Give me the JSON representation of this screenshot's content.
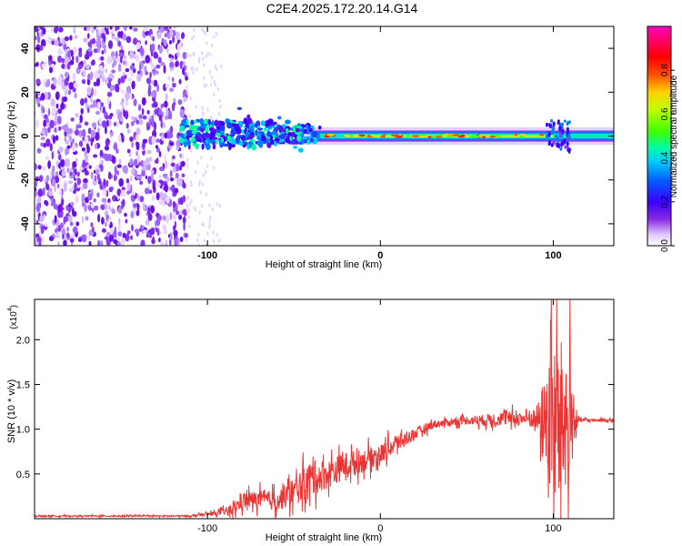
{
  "title": "C2E4.2025.172.20.14.G14",
  "chart_data": [
    {
      "type": "heatmap",
      "name": "spectrogram",
      "xlabel": "Height of straight line (km)",
      "ylabel": "Frequency (Hz)",
      "xlim": [
        -200,
        135
      ],
      "ylim": [
        -50,
        50
      ],
      "x_ticks": [
        -100,
        0,
        100
      ],
      "y_ticks": [
        -40,
        -20,
        0,
        20,
        40
      ],
      "colorbar": {
        "label": "Normalized spectral amplitude",
        "range": [
          0,
          1
        ],
        "ticks": [
          "0.0",
          "0.2",
          "0.4",
          "0.6",
          "0.8"
        ],
        "colors": [
          "#ffffff",
          "#e0c8ff",
          "#8a2be2",
          "#3a00ff",
          "#0060ff",
          "#00c8ff",
          "#00ffa0",
          "#40ff00",
          "#c0ff00",
          "#ffd000",
          "#ff5000",
          "#ff0000",
          "#ff0060",
          "#ff00c0"
        ]
      },
      "regions": [
        {
          "x_from": -200,
          "x_to": -115,
          "description": "broadband noise",
          "freq_from": -50,
          "freq_to": 50
        },
        {
          "x_from": -115,
          "x_to": -60,
          "description": "weak signal",
          "freq_center": 2
        },
        {
          "x_from": -60,
          "x_to": 135,
          "description": "strong carrier",
          "freq_center": 0
        }
      ]
    },
    {
      "type": "line",
      "name": "snr",
      "xlabel": "Height of straight line (km)",
      "ylabel": "SNR (10 * v/v)",
      "y_multiplier_label": "(x10",
      "y_multiplier_exp": "4",
      "xlim": [
        -200,
        135
      ],
      "ylim": [
        0,
        2.45
      ],
      "x_ticks": [
        -100,
        0,
        100
      ],
      "y_ticks": [
        0.5,
        1.0,
        1.5,
        2.0
      ],
      "y_tick_labels": [
        "0.5",
        "1.0",
        "1.5",
        "2.0"
      ],
      "color": "#ee3333",
      "envelope": {
        "x": [
          -200,
          -110,
          -95,
          -85,
          -80,
          -70,
          -60,
          -50,
          -40,
          -30,
          -20,
          -10,
          0,
          10,
          20,
          30,
          40,
          50,
          60,
          70,
          80,
          90,
          95,
          100,
          105,
          110,
          112,
          115,
          120,
          135
        ],
        "y": [
          0.03,
          0.03,
          0.06,
          0.1,
          0.2,
          0.22,
          0.2,
          0.3,
          0.45,
          0.5,
          0.6,
          0.65,
          0.72,
          0.85,
          0.95,
          1.05,
          1.08,
          1.1,
          1.1,
          1.12,
          1.12,
          1.12,
          1.1,
          1.1,
          1.1,
          1.1,
          1.1,
          1.1,
          1.1,
          1.1
        ]
      },
      "noise": {
        "x": [
          -200,
          -110,
          -95,
          -85,
          -80,
          -70,
          -60,
          -50,
          -40,
          -30,
          -20,
          -10,
          0,
          10,
          20,
          30,
          40,
          50,
          60,
          70,
          80,
          90,
          95,
          100,
          105,
          110,
          112,
          115,
          120,
          135
        ],
        "y": [
          0.01,
          0.01,
          0.03,
          0.08,
          0.12,
          0.12,
          0.14,
          0.2,
          0.25,
          0.2,
          0.18,
          0.16,
          0.14,
          0.12,
          0.08,
          0.06,
          0.05,
          0.06,
          0.08,
          0.1,
          0.1,
          0.15,
          0.6,
          1.3,
          1.1,
          0.9,
          0.3,
          0.03,
          0.02,
          0.02
        ]
      }
    }
  ]
}
